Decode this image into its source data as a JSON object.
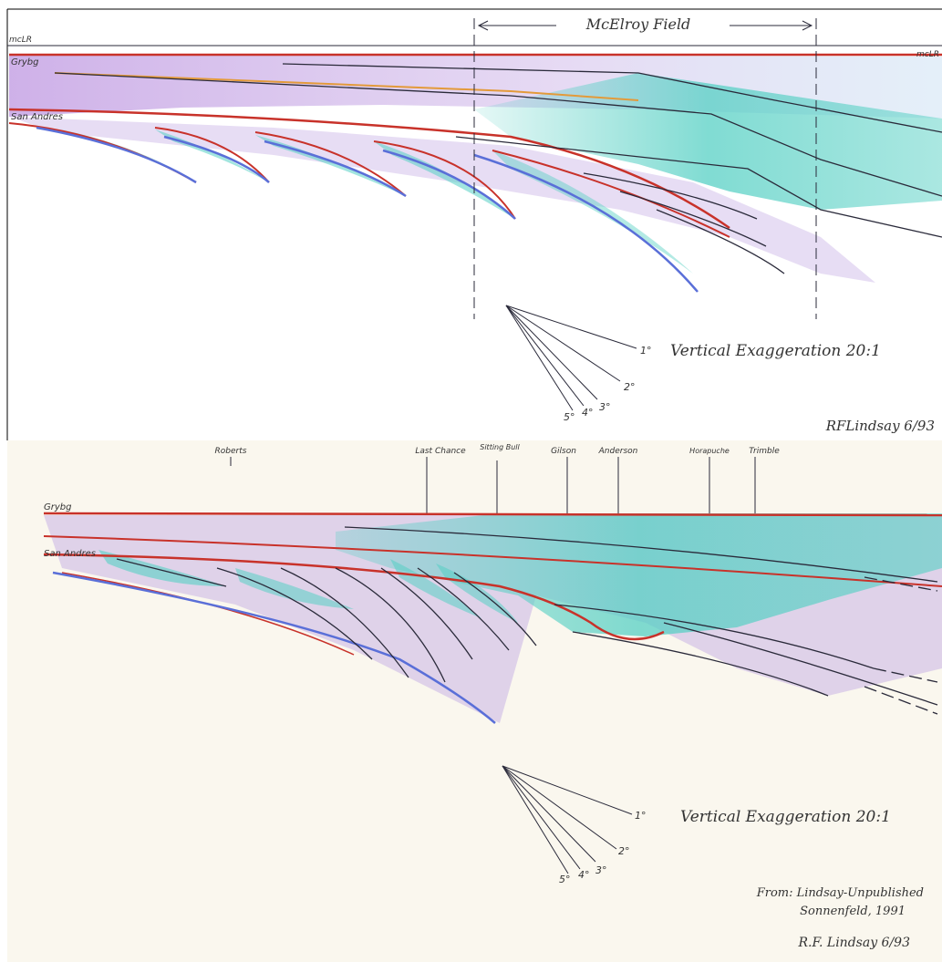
{
  "top_panel": {
    "field_label": "McElroy Field",
    "datum_left": "mcLR",
    "datum_right": "mcLR",
    "formation_upper": "Grybg",
    "formation_lower": "San Andres",
    "dip_labels": [
      "1°",
      "2°",
      "3°",
      "4°",
      "5°"
    ],
    "exaggeration_text": "Vertical Exaggeration 20:1",
    "signature": "RFLindsay 6/93"
  },
  "bottom_panel": {
    "wells": [
      "Roberts",
      "Last Chance",
      "Sitting Bull",
      "Gilson",
      "Anderson",
      "Horapuche",
      "Trimble"
    ],
    "formation_upper": "Grybg",
    "formation_lower": "San Andres",
    "dip_labels": [
      "1°",
      "2°",
      "3°",
      "4°",
      "5°"
    ],
    "exaggeration_text": "Vertical Exaggeration 20:1",
    "source_line1": "From: Lindsay-Unpublished",
    "source_line2": "Sonnenfeld, 1991",
    "signature": "R.F. Lindsay 6/93"
  },
  "colors": {
    "red_surface": "#c8322a",
    "blue_clinoform": "#5a6fd8",
    "teal_fill": "#56d0c4",
    "lavender_fill": "#c9b4e6",
    "orange_line": "#e39a3a",
    "ink": "#2a2a3a"
  }
}
